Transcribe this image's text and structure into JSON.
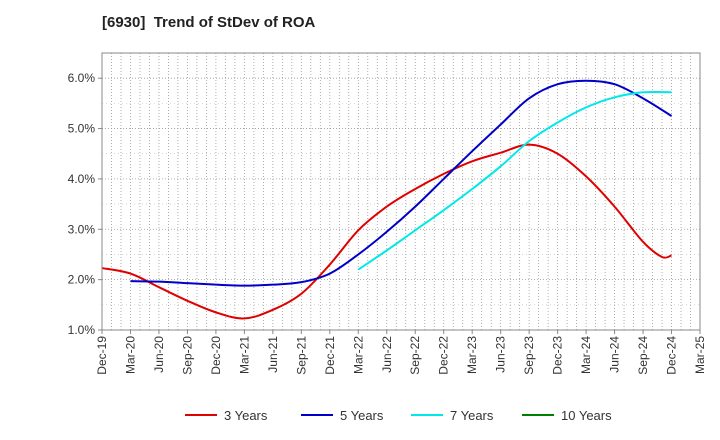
{
  "title": "[6930]  Trend of StDev of ROA",
  "chart_data": {
    "type": "line",
    "title": "[6930]  Trend of StDev of ROA",
    "xlabel": "",
    "ylabel": "",
    "ylim": [
      1.0,
      6.5
    ],
    "yticks": [
      1.0,
      2.0,
      3.0,
      4.0,
      5.0,
      6.0
    ],
    "ytick_labels": [
      "1.0%",
      "2.0%",
      "3.0%",
      "4.0%",
      "5.0%",
      "6.0%"
    ],
    "xticks": [
      "Dec-19",
      "Mar-20",
      "Jun-20",
      "Sep-20",
      "Dec-20",
      "Mar-21",
      "Jun-21",
      "Sep-21",
      "Dec-21",
      "Mar-22",
      "Jun-22",
      "Sep-22",
      "Dec-22",
      "Mar-23",
      "Jun-23",
      "Sep-23",
      "Dec-23",
      "Mar-24",
      "Jun-24",
      "Sep-24",
      "Dec-24",
      "Mar-25"
    ],
    "grid": true,
    "legend_position": "bottom",
    "series": [
      {
        "name": "3 Years",
        "color": "#e00000",
        "x": [
          "Dec-19",
          "Mar-20",
          "Jun-20",
          "Sep-20",
          "Dec-20",
          "Mar-21",
          "Jun-21",
          "Sep-21",
          "Dec-21",
          "Mar-22",
          "Jun-22",
          "Sep-22",
          "Dec-22",
          "Mar-23",
          "Jun-23",
          "Sep-23",
          "Dec-23",
          "Mar-24",
          "Jun-24",
          "Sep-24",
          "Nov-24",
          "Dec-24"
        ],
        "values": [
          2.23,
          2.12,
          1.85,
          1.58,
          1.35,
          1.23,
          1.4,
          1.72,
          2.3,
          2.98,
          3.45,
          3.8,
          4.1,
          4.35,
          4.52,
          4.68,
          4.5,
          4.05,
          3.45,
          2.75,
          2.45,
          2.48
        ]
      },
      {
        "name": "5 Years",
        "color": "#0000c8",
        "x": [
          "Mar-20",
          "Jun-20",
          "Sep-20",
          "Dec-20",
          "Mar-21",
          "Jun-21",
          "Sep-21",
          "Dec-21",
          "Mar-22",
          "Jun-22",
          "Sep-22",
          "Dec-22",
          "Mar-23",
          "Jun-23",
          "Sep-23",
          "Dec-23",
          "Mar-24",
          "Jun-24",
          "Sep-24",
          "Dec-24"
        ],
        "values": [
          1.97,
          1.96,
          1.93,
          1.9,
          1.88,
          1.9,
          1.95,
          2.12,
          2.5,
          2.95,
          3.45,
          4.0,
          4.55,
          5.08,
          5.6,
          5.88,
          5.95,
          5.88,
          5.6,
          5.25
        ]
      },
      {
        "name": "7 Years",
        "color": "#00e8e8",
        "x": [
          "Mar-22",
          "Jun-22",
          "Sep-22",
          "Dec-22",
          "Mar-23",
          "Jun-23",
          "Sep-23",
          "Dec-23",
          "Mar-24",
          "Jun-24",
          "Sep-24",
          "Dec-24"
        ],
        "values": [
          2.2,
          2.58,
          2.98,
          3.38,
          3.8,
          4.25,
          4.75,
          5.12,
          5.42,
          5.62,
          5.72,
          5.72
        ]
      },
      {
        "name": "10 Years",
        "color": "#008000",
        "x": [],
        "values": []
      }
    ]
  }
}
